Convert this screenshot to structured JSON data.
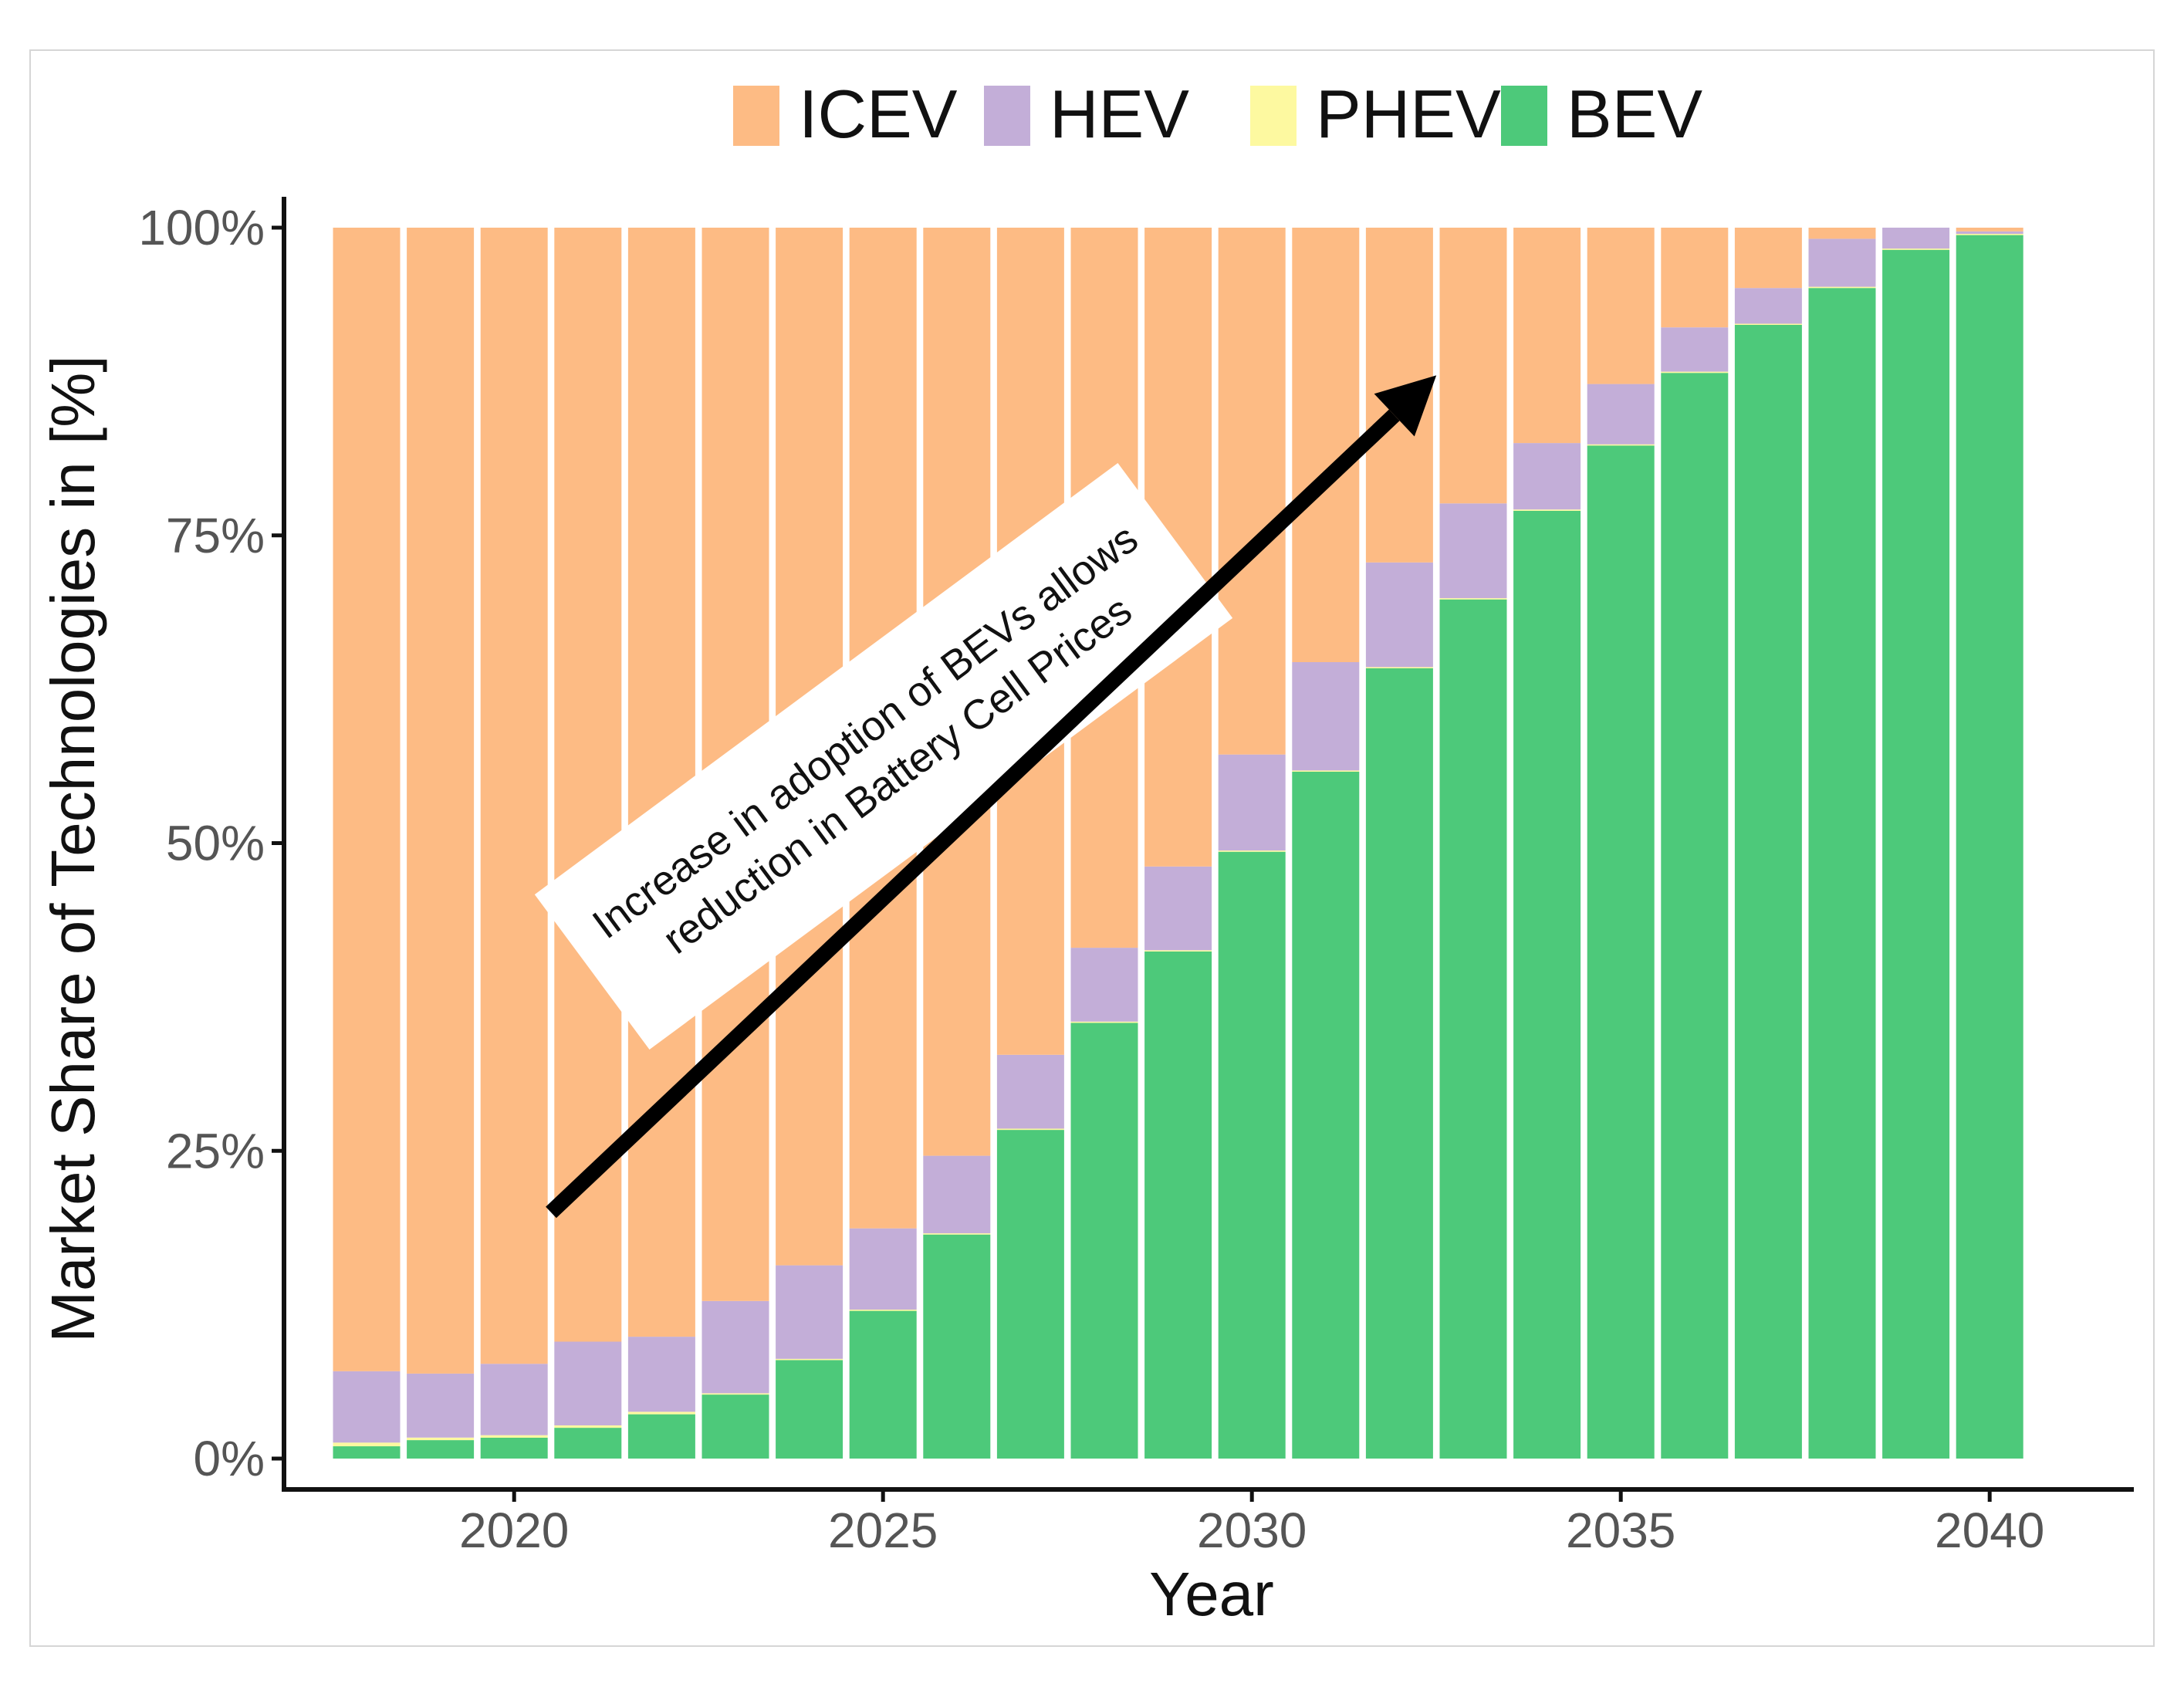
{
  "chart_data": {
    "type": "stacked-bar",
    "title": "",
    "xlabel": "Year",
    "ylabel": "Market Share of Technologies in [%]",
    "ylim": [
      0,
      100
    ],
    "y_ticks": [
      "0%",
      "25%",
      "50%",
      "75%",
      "100%"
    ],
    "y_tick_values": [
      0,
      25,
      50,
      75,
      100
    ],
    "x_ticks": [
      "2020",
      "2025",
      "2030",
      "2035",
      "2040"
    ],
    "x_tick_values": [
      2020,
      2025,
      2030,
      2035,
      2040
    ],
    "categories": [
      2018,
      2019,
      2020,
      2021,
      2022,
      2023,
      2024,
      2025,
      2026,
      2027,
      2028,
      2029,
      2030,
      2031,
      2032,
      2033,
      2034,
      2035,
      2036,
      2037,
      2038,
      2039,
      2040
    ],
    "series": [
      {
        "name": "BEV",
        "color": "#4dc97a",
        "values": [
          1.0,
          1.5,
          1.7,
          2.5,
          3.6,
          5.2,
          8.0,
          12.0,
          18.2,
          26.7,
          35.4,
          41.2,
          49.3,
          55.8,
          64.2,
          69.8,
          77.0,
          82.3,
          88.2,
          92.1,
          95.1,
          98.2,
          99.4
        ]
      },
      {
        "name": "PHEV",
        "color": "#fdf9a0",
        "values": [
          0.3,
          0.2,
          0.2,
          0.2,
          0.2,
          0.1,
          0.1,
          0.1,
          0.1,
          0.1,
          0.1,
          0.1,
          0.1,
          0.1,
          0.1,
          0.1,
          0.1,
          0.1,
          0.1,
          0.1,
          0.1,
          0.1,
          0.1
        ]
      },
      {
        "name": "HEV",
        "color": "#c3aed8",
        "values": [
          5.8,
          5.2,
          5.8,
          6.8,
          6.1,
          7.5,
          7.6,
          6.6,
          6.3,
          6.0,
          6.0,
          6.8,
          7.8,
          8.8,
          8.5,
          7.7,
          5.4,
          4.9,
          3.6,
          2.9,
          3.9,
          1.7,
          0.2
        ]
      },
      {
        "name": "ICEV",
        "color": "#fdbb84",
        "values": [
          92.9,
          93.1,
          92.3,
          90.5,
          90.1,
          87.2,
          84.3,
          81.3,
          75.4,
          67.2,
          58.5,
          51.9,
          42.8,
          35.3,
          27.2,
          22.4,
          17.5,
          12.7,
          8.1,
          4.9,
          0.9,
          0.0,
          0.3
        ]
      }
    ],
    "legend": {
      "position": "top",
      "items": [
        "ICEV",
        "HEV",
        "PHEV",
        "BEV"
      ]
    },
    "annotation": {
      "lines": [
        "Increase in adoption of BEVs allows",
        "reduction in Battery Cell Prices"
      ],
      "arrow_from": {
        "x": 2020.5,
        "y": 20
      },
      "arrow_to": {
        "x": 2032.5,
        "y": 88
      }
    }
  },
  "colors": {
    "ICEV": "#fdbb84",
    "HEV": "#c3aed8",
    "PHEV": "#fdf9a0",
    "BEV": "#4dc97a",
    "axis": "#111111",
    "tick_label": "#555555"
  }
}
